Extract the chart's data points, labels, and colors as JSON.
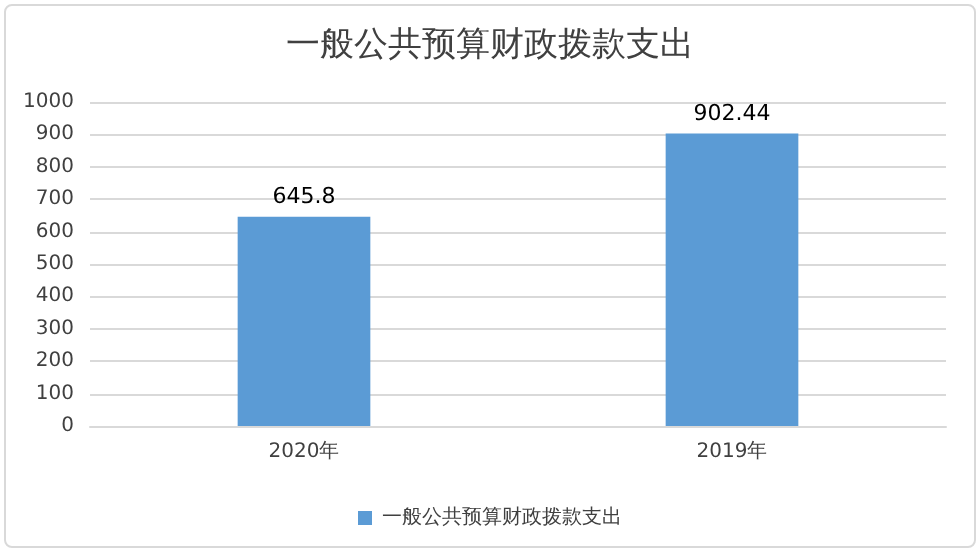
{
  "chart_data": {
    "type": "bar",
    "title": "一般公共预算财政拨款支出",
    "categories": [
      "2020年",
      "2019年"
    ],
    "series": [
      {
        "name": "一般公共预算财政拨款支出",
        "color": "#5b9bd5",
        "values": [
          645.8,
          902.44
        ]
      }
    ],
    "ylim": [
      0,
      1000
    ],
    "yticks": [
      0,
      100,
      200,
      300,
      400,
      500,
      600,
      700,
      800,
      900,
      1000
    ],
    "grid": "y",
    "legend": "bottom",
    "data_labels": true
  }
}
